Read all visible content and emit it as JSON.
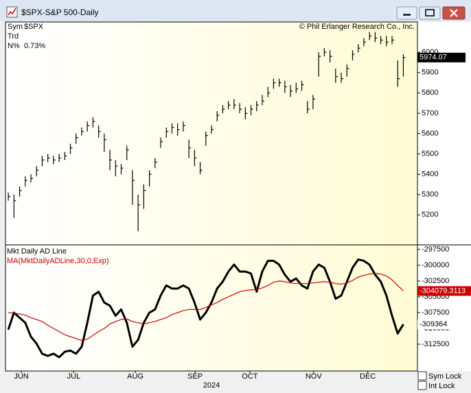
{
  "window": {
    "title": "$SPX-S&P 500-Daily",
    "info": [
      {
        "label": "Sym",
        "value": "$SPX"
      },
      {
        "label": "Trd"
      },
      {
        "label": "N%",
        "value": "0.73%"
      }
    ],
    "copyright": "© Phil Erlanger Research Co., Inc.",
    "checkboxes": [
      "Sym Lock",
      "Int Lock"
    ]
  },
  "chart_data": [
    {
      "type": "ohlc",
      "color": "#000000",
      "xlim": [
        -0.5,
        72.5
      ],
      "ylim": [
        5054,
        6149
      ],
      "yticks": [
        5200,
        5300,
        5400,
        5500,
        5600,
        5700,
        5800,
        5900,
        6000
      ],
      "high": [
        5310,
        5300,
        5340,
        5390,
        5400,
        5440,
        5490,
        5500,
        5490,
        5500,
        5510,
        5550,
        5600,
        5630,
        5660,
        5680,
        5640,
        5600,
        5520,
        5470,
        5450,
        5540,
        5420,
        5300,
        5350,
        5420,
        5480,
        5580,
        5630,
        5650,
        5650,
        5660,
        5570,
        5520,
        5460,
        5610,
        5640,
        5710,
        5740,
        5760,
        5770,
        5750,
        5730,
        5740,
        5760,
        5790,
        5830,
        5870,
        5870,
        5860,
        5840,
        5850,
        5860,
        5760,
        5790,
        6000,
        6020,
        6010,
        5920,
        5900,
        5940,
        6010,
        6040,
        6070,
        6100,
        6100,
        6080,
        6080,
        6080,
        5960,
        5990
      ],
      "low": [
        5270,
        5185,
        5290,
        5340,
        5360,
        5390,
        5440,
        5460,
        5450,
        5460,
        5470,
        5500,
        5550,
        5590,
        5610,
        5630,
        5580,
        5510,
        5420,
        5390,
        5400,
        5470,
        5250,
        5120,
        5230,
        5340,
        5430,
        5530,
        5580,
        5600,
        5590,
        5610,
        5480,
        5440,
        5400,
        5540,
        5600,
        5660,
        5700,
        5720,
        5720,
        5700,
        5670,
        5690,
        5710,
        5740,
        5780,
        5820,
        5830,
        5800,
        5780,
        5800,
        5810,
        5700,
        5720,
        5880,
        5980,
        5950,
        5850,
        5850,
        5880,
        5960,
        6000,
        6030,
        6060,
        6050,
        6040,
        6030,
        6040,
        5830,
        5880
      ],
      "close": [
        5290,
        5270,
        5320,
        5370,
        5380,
        5420,
        5470,
        5480,
        5470,
        5480,
        5490,
        5530,
        5580,
        5610,
        5640,
        5660,
        5610,
        5570,
        5470,
        5440,
        5430,
        5520,
        5370,
        5250,
        5320,
        5400,
        5460,
        5560,
        5610,
        5630,
        5620,
        5640,
        5530,
        5480,
        5420,
        5590,
        5620,
        5690,
        5720,
        5740,
        5740,
        5720,
        5700,
        5720,
        5740,
        5760,
        5800,
        5850,
        5850,
        5830,
        5810,
        5820,
        5840,
        5720,
        5770,
        5980,
        6000,
        5980,
        5880,
        5870,
        5920,
        5990,
        6020,
        6050,
        6080,
        6070,
        6060,
        6050,
        6060,
        5870,
        5974.07
      ]
    },
    {
      "type": "line",
      "xlim": [
        -0.5,
        72.5
      ],
      "ylim": [
        -316739,
        -296848
      ],
      "yticks": [
        -297500,
        -300000,
        -302500,
        -305000,
        -307500,
        -310000,
        -312500
      ],
      "xticks": [
        {
          "value": 2.3,
          "label": "JUN"
        },
        {
          "value": 11.6,
          "label": "JUL"
        },
        {
          "value": 22.5,
          "label": "AUG"
        },
        {
          "value": 33.1,
          "label": "SEP"
        },
        {
          "value": 42.8,
          "label": "OCT"
        },
        {
          "value": 54.1,
          "label": "NOV"
        },
        {
          "value": 63.7,
          "label": "DEC"
        }
      ],
      "xlabel": "2024",
      "series": [
        {
          "name": "Mkt Daily AD Line",
          "color": "#000000",
          "values": [
            -310200,
            -307500,
            -308300,
            -309100,
            -311300,
            -312400,
            -314000,
            -314350,
            -314000,
            -314550,
            -313700,
            -313500,
            -314000,
            -312900,
            -309100,
            -304800,
            -304200,
            -305900,
            -306400,
            -308000,
            -307000,
            -309100,
            -312900,
            -311800,
            -309100,
            -307500,
            -307000,
            -304800,
            -303200,
            -303700,
            -303700,
            -303200,
            -303700,
            -305900,
            -308600,
            -307500,
            -305900,
            -303700,
            -302600,
            -301000,
            -299900,
            -301000,
            -301000,
            -301300,
            -304200,
            -301000,
            -299300,
            -299300,
            -299900,
            -301500,
            -302600,
            -302100,
            -303200,
            -303700,
            -301000,
            -299900,
            -300400,
            -302600,
            -305300,
            -304800,
            -302600,
            -300400,
            -299100,
            -299300,
            -299900,
            -301500,
            -302600,
            -304800,
            -308000,
            -310800,
            -309364
          ]
        },
        {
          "name": "MA(MktDailyADLine,30,0,Exp)",
          "color": "#cc0000",
          "values": [
            -307500,
            -307600,
            -307700,
            -307900,
            -308300,
            -308600,
            -308900,
            -309500,
            -310000,
            -310500,
            -311000,
            -311300,
            -311600,
            -311900,
            -311700,
            -311100,
            -310500,
            -310000,
            -309300,
            -308900,
            -308600,
            -308500,
            -308900,
            -309100,
            -309300,
            -309100,
            -308900,
            -308600,
            -308300,
            -307800,
            -307500,
            -307200,
            -307000,
            -307000,
            -307000,
            -306700,
            -306300,
            -305900,
            -305400,
            -305000,
            -304600,
            -304200,
            -304000,
            -303900,
            -303800,
            -303600,
            -303200,
            -302700,
            -302500,
            -302600,
            -302800,
            -302900,
            -302900,
            -302900,
            -302800,
            -302700,
            -302600,
            -302700,
            -302900,
            -303000,
            -302800,
            -302400,
            -301900,
            -301600,
            -301400,
            -301300,
            -301400,
            -301700,
            -302300,
            -303200,
            -304079.3113
          ]
        }
      ]
    }
  ]
}
